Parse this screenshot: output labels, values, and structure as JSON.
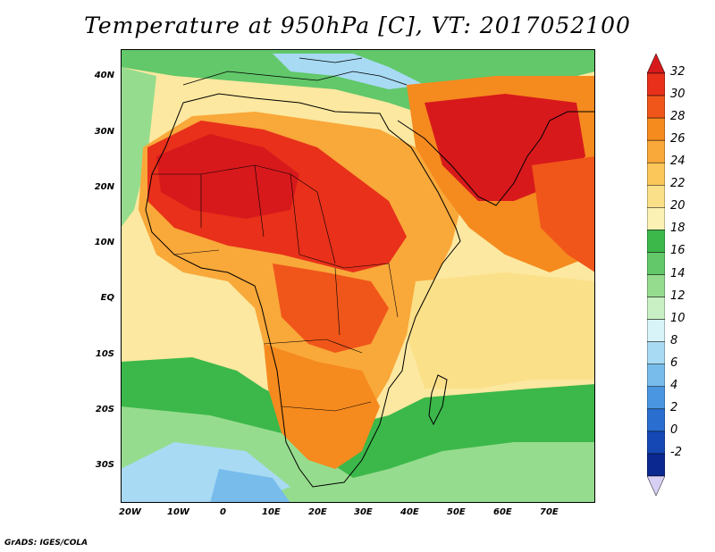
{
  "title": "Temperature at 950hPa [C], VT: 2017052100",
  "footer": "GrADS: IGES/COLA",
  "y_axis_labels": [
    "40N",
    "30N",
    "20N",
    "10N",
    "EQ",
    "10S",
    "20S",
    "30S"
  ],
  "x_axis_labels": [
    "20W",
    "10W",
    "0",
    "10E",
    "20E",
    "30E",
    "40E",
    "50E",
    "60E",
    "70E"
  ],
  "colorbar": {
    "labels": [
      "32",
      "30",
      "28",
      "26",
      "24",
      "22",
      "20",
      "18",
      "16",
      "14",
      "12",
      "10",
      "8",
      "6",
      "4",
      "2",
      "0",
      "-2"
    ],
    "colors": [
      "#d7191c",
      "#e8301a",
      "#f0561a",
      "#f58a1e",
      "#f9a83a",
      "#fbc65a",
      "#fbe08a",
      "#fcf1b4",
      "#3cb84a",
      "#62c86a",
      "#96dc8e",
      "#c8f0c4",
      "#d8f4f8",
      "#a8daf4",
      "#78bcec",
      "#4a96e0",
      "#2a6ed0",
      "#1548b4",
      "#0a2890",
      "#d8d0f4"
    ]
  },
  "colors": {
    "hot": "#d7191c",
    "warm": "#f58a1e",
    "mild": "#fce8a0",
    "cool": "#62c86a",
    "cold": "#78bcec"
  }
}
